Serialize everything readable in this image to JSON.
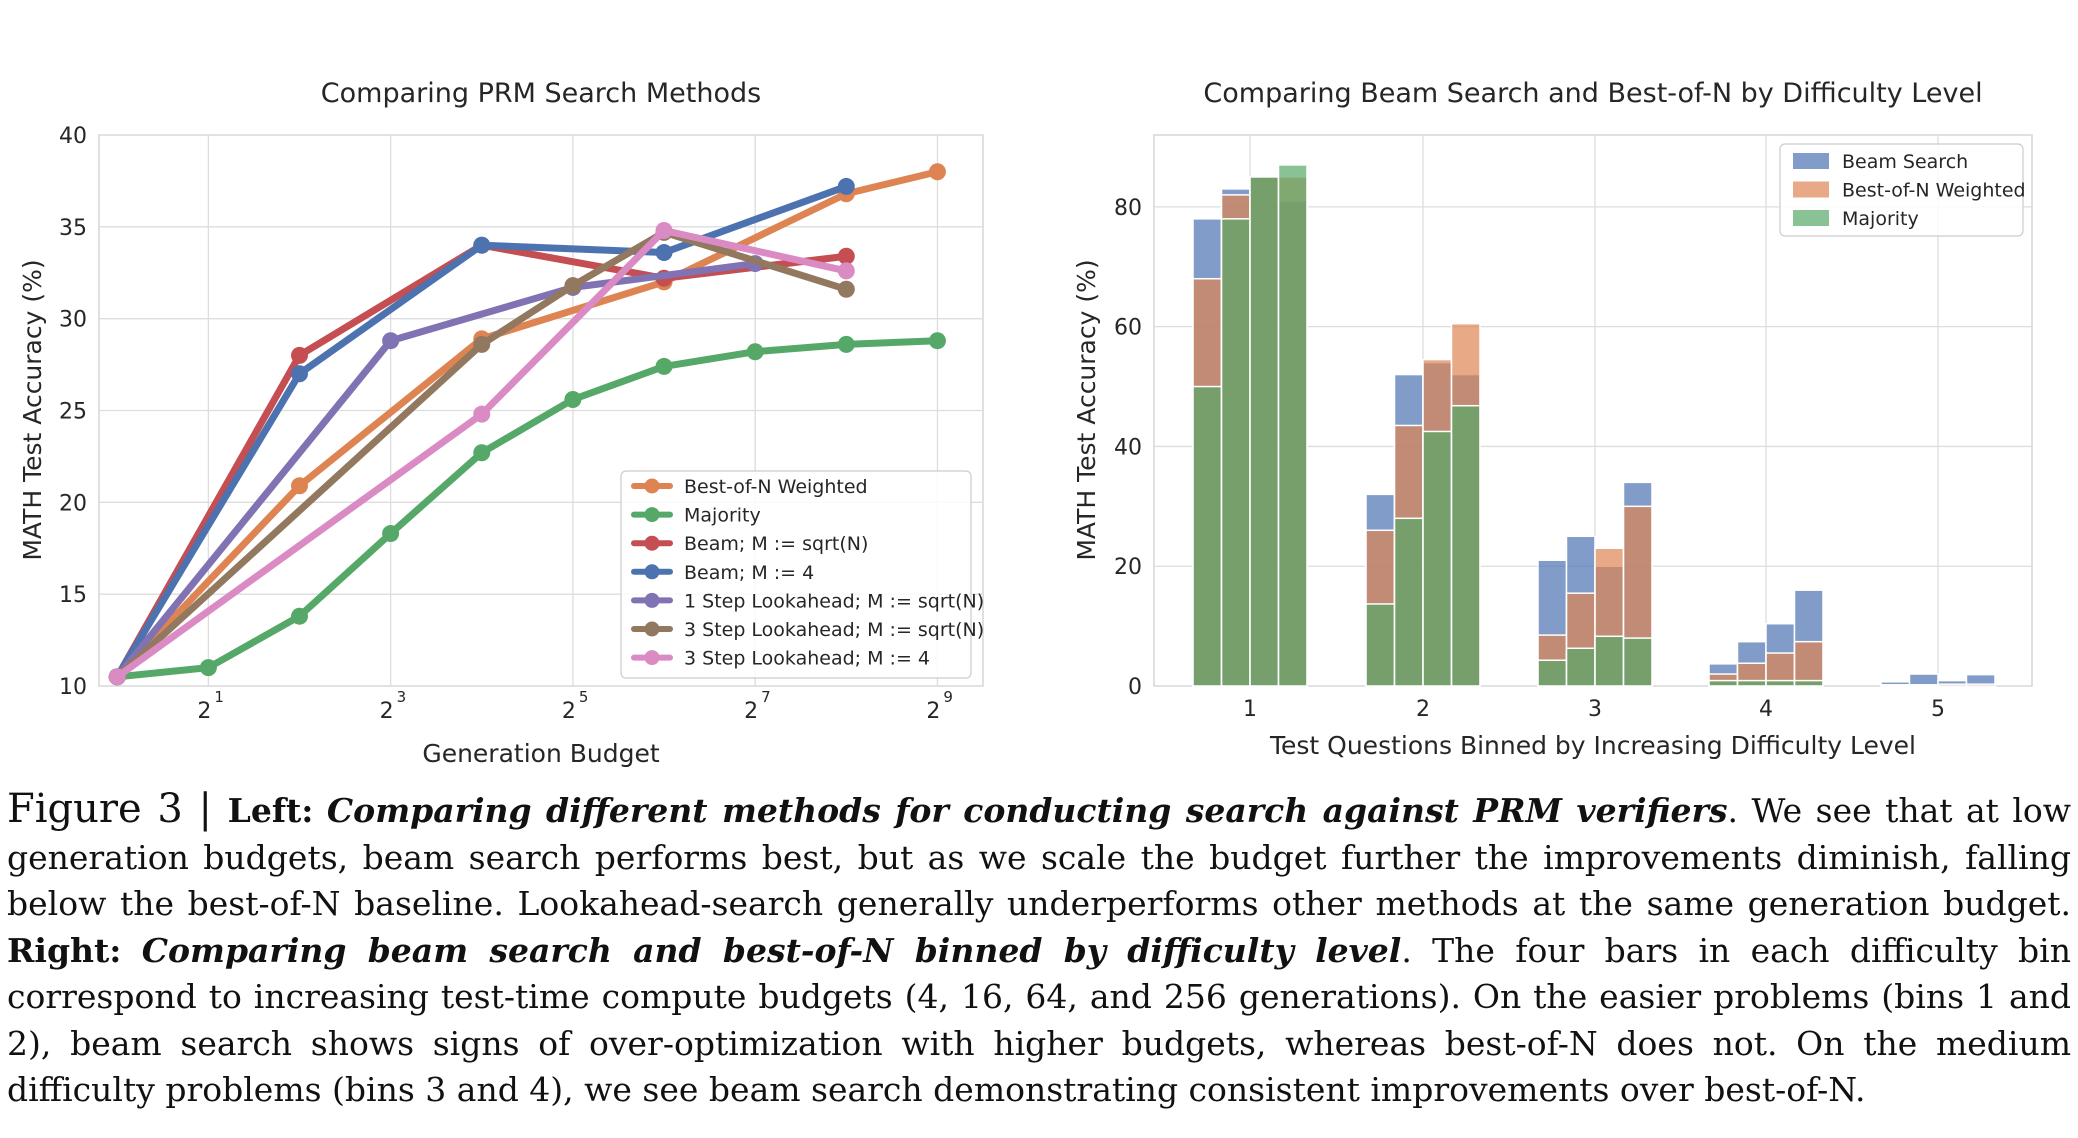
{
  "chart_data": [
    {
      "type": "line",
      "title": "Comparing PRM Search Methods",
      "xlabel": "Generation Budget",
      "ylabel": "MATH Test Accuracy (%)",
      "x_scale": "log2",
      "xlim_log2": [
        -0.2,
        9.5
      ],
      "ylim": [
        10,
        40
      ],
      "yticks": [
        "10",
        "15",
        "20",
        "25",
        "30",
        "35",
        "40"
      ],
      "xticks": [
        {
          "base": "2",
          "exp": "1",
          "log2": 1
        },
        {
          "base": "2",
          "exp": "3",
          "log2": 3
        },
        {
          "base": "2",
          "exp": "5",
          "log2": 5
        },
        {
          "base": "2",
          "exp": "7",
          "log2": 7
        },
        {
          "base": "2",
          "exp": "9",
          "log2": 9
        }
      ],
      "grid": true,
      "legend_position": "lower-right",
      "series": [
        {
          "name": "Best-of-N Weighted",
          "color": "#dd8452",
          "x": [
            1,
            4,
            16,
            64,
            256,
            512
          ],
          "log2x": [
            0,
            2,
            4,
            6,
            8,
            9
          ],
          "y": [
            10.5,
            20.9,
            28.9,
            32.0,
            36.8,
            38.0
          ],
          "partial": [
            [
              0.3,
              10.4
            ],
            [
              1.0,
              15.8
            ],
            [
              3.0,
              25.6
            ],
            [
              5.0,
              31.7
            ],
            [
              7.0,
              35.3
            ]
          ]
        },
        {
          "name": "Majority",
          "color": "#55a868",
          "log2x": [
            0,
            1,
            2,
            3,
            4,
            5,
            6,
            7,
            8,
            9
          ],
          "y": [
            10.5,
            11.0,
            13.8,
            18.3,
            22.7,
            25.6,
            27.4,
            28.2,
            28.6,
            28.8
          ]
        },
        {
          "name": "Beam; M := sqrt(N)",
          "color": "#c44e52",
          "log2x": [
            0,
            2,
            4,
            6,
            8
          ],
          "y": [
            10.5,
            28.0,
            34.0,
            32.2,
            33.4
          ]
        },
        {
          "name": "Beam; M := 4",
          "color": "#4c72b0",
          "log2x": [
            0,
            2,
            4,
            6,
            8
          ],
          "y": [
            10.5,
            27.0,
            34.0,
            33.6,
            37.2
          ]
        },
        {
          "name": "1 Step Lookahead; M := sqrt(N)",
          "color": "#8172b3",
          "log2x": [
            0,
            3,
            5,
            7
          ],
          "y": [
            10.5,
            28.8,
            31.7,
            33.0
          ]
        },
        {
          "name": "3 Step Lookahead; M := sqrt(N)",
          "color": "#937860",
          "log2x": [
            0,
            4,
            5,
            6,
            8
          ],
          "y": [
            10.5,
            28.6,
            31.8,
            34.7,
            31.6
          ]
        },
        {
          "name": "3 Step Lookahead; M := 4",
          "color": "#da8bc3",
          "log2x": [
            0,
            4,
            6,
            8
          ],
          "y": [
            10.5,
            24.8,
            34.8,
            32.6
          ]
        }
      ]
    },
    {
      "type": "bar",
      "title": "Comparing Beam Search and Best-of-N by Difficulty Level",
      "xlabel": "Test Questions Binned by Increasing Difficulty Level",
      "ylabel": "MATH Test Accuracy (%)",
      "categories": [
        "1",
        "2",
        "3",
        "4",
        "5"
      ],
      "ylim": [
        0,
        92
      ],
      "yticks": [
        "0",
        "20",
        "40",
        "60",
        "80"
      ],
      "bars_per_category": 4,
      "generation_budgets": [
        4,
        16,
        64,
        256
      ],
      "grid": true,
      "legend_position": "top-right",
      "overlay": true,
      "series": [
        {
          "name": "Beam Search",
          "color": "#4c72b0",
          "values": [
            [
              78,
              83,
              85,
              81
            ],
            [
              32,
              52,
              54,
              52
            ],
            [
              21,
              25,
              20,
              34
            ],
            [
              3.7,
              7.4,
              10.4,
              16.0
            ],
            [
              0.7,
              2.0,
              0.9,
              1.9
            ]
          ]
        },
        {
          "name": "Best-of-N Weighted",
          "color": "#dd8452",
          "values": [
            [
              68,
              82,
              85,
              85
            ],
            [
              26,
              43.5,
              54.5,
              60.5
            ],
            [
              8.5,
              15.5,
              23.0,
              30.0
            ],
            [
              2.0,
              3.8,
              5.5,
              7.4
            ],
            [
              0.2,
              0.2,
              0.3,
              0.3
            ]
          ]
        },
        {
          "name": "Majority",
          "color": "#55a868",
          "values": [
            [
              50,
              78,
              85,
              87
            ],
            [
              13.7,
              28.0,
              42.5,
              46.8
            ],
            [
              4.3,
              6.3,
              8.3,
              8.0
            ],
            [
              0.9,
              0.9,
              0.9,
              0.9
            ],
            [
              0,
              0,
              0,
              0
            ]
          ]
        }
      ]
    }
  ],
  "caption": {
    "figure_label": "Figure 3",
    "separator": " | ",
    "left_label": "Left:",
    "left_title": "Comparing different methods for conducting search against PRM verifiers",
    "left_text": ". We see that at low generation budgets, beam search performs best, but as we scale the budget further the improvements diminish, falling below the best-of-N baseline. Lookahead-search generally underperforms other methods at the same generation budget. ",
    "right_label": "Right:",
    "right_title": "Comparing beam search and best-of-N binned by difficulty level",
    "right_text": ". The four bars in each difficulty bin correspond to increasing test-time compute budgets (4, 16, 64, and 256 generations). On the easier problems (bins 1 and 2), beam search shows signs of over-optimization with higher budgets, whereas best-of-N does not. On the medium difficulty problems (bins 3 and 4), we see beam search demonstrating consistent improvements over best-of-N."
  }
}
